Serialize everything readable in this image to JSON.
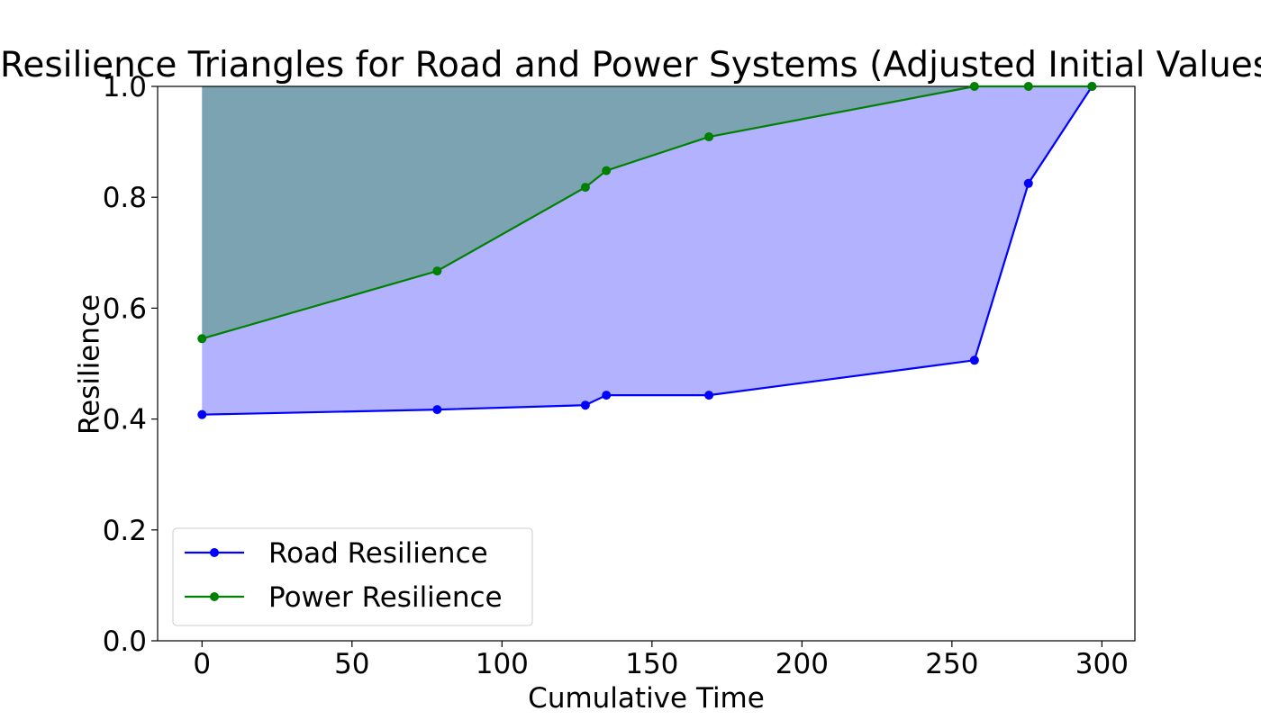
{
  "chart_data": {
    "type": "line",
    "title": "Resilience Triangles for Road and Power Systems (Adjusted Initial Values)",
    "xlabel": "Cumulative Time",
    "ylabel": "Resilience",
    "xlim": [
      -14.8,
      311
    ],
    "ylim": [
      0.0,
      1.0
    ],
    "xticks": [
      0,
      50,
      100,
      150,
      200,
      250,
      300
    ],
    "yticks": [
      0.0,
      0.2,
      0.4,
      0.6,
      0.8,
      1.0
    ],
    "xtick_labels": [
      "0",
      "50",
      "100",
      "150",
      "200",
      "250",
      "300"
    ],
    "ytick_labels": [
      "0.0",
      "0.2",
      "0.4",
      "0.6",
      "0.8",
      "1.0"
    ],
    "grid": false,
    "legend": {
      "placement": "lower-left"
    },
    "x": [
      0,
      78.4,
      127.8,
      134.8,
      169.0,
      257.5,
      275.5,
      296.7
    ],
    "series": [
      {
        "name": "Road Resilience",
        "color": "#0000ff",
        "fill_color": "#0000ff",
        "fill_opacity": 0.3,
        "values": [
          0.408,
          0.417,
          0.425,
          0.443,
          0.443,
          0.506,
          0.825,
          1.0
        ]
      },
      {
        "name": "Power Resilience",
        "color": "#008000",
        "fill_color": "#008000",
        "fill_opacity": 0.3,
        "values": [
          0.545,
          0.667,
          0.818,
          0.848,
          0.909,
          1.0,
          1.0,
          1.0
        ]
      }
    ]
  }
}
